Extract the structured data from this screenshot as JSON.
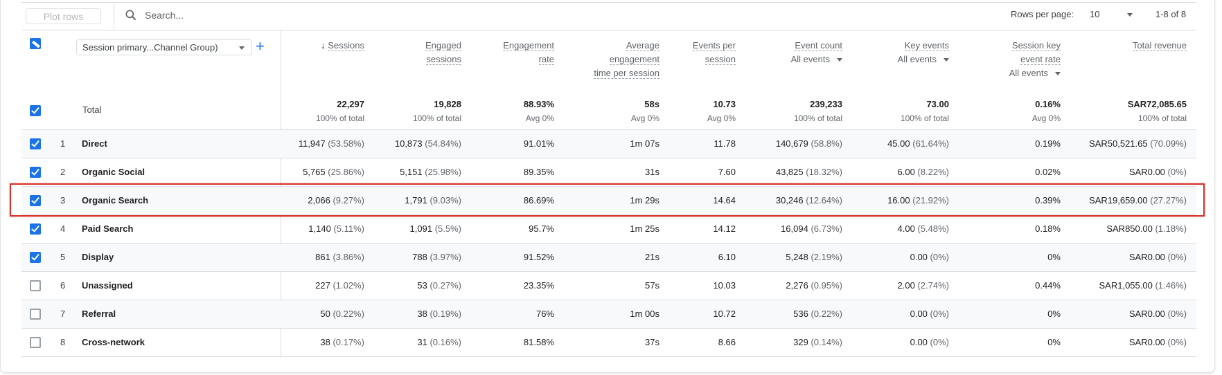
{
  "toolbar": {
    "plot_rows_label": "Plot rows",
    "search_placeholder": "Search...",
    "rows_per_page_label": "Rows per page:",
    "rows_per_page_value": "10",
    "pagination": "1-8 of 8"
  },
  "dimension": {
    "selector_label": "Session primary...Channel Group)",
    "add_icon": "plus-icon"
  },
  "columns": [
    {
      "lines": [
        "Sessions"
      ],
      "sort": "desc",
      "selector": null
    },
    {
      "lines": [
        "Engaged",
        "sessions"
      ],
      "selector": null
    },
    {
      "lines": [
        "Engagement",
        "rate"
      ],
      "selector": null
    },
    {
      "lines": [
        "Average",
        "engagement",
        "time per session"
      ],
      "selector": null
    },
    {
      "lines": [
        "Events per",
        "session"
      ],
      "selector": null
    },
    {
      "lines": [
        "Event count"
      ],
      "selector": "All events"
    },
    {
      "lines": [
        "Key events"
      ],
      "selector": "All events"
    },
    {
      "lines": [
        "Session key",
        "event rate"
      ],
      "selector": "All events"
    },
    {
      "lines": [
        "Total revenue"
      ],
      "selector": null
    }
  ],
  "total": {
    "label": "Total",
    "checked": true,
    "values": [
      {
        "v": "22,297",
        "s": "100% of total"
      },
      {
        "v": "19,828",
        "s": "100% of total"
      },
      {
        "v": "88.93%",
        "s": "Avg 0%"
      },
      {
        "v": "58s",
        "s": "Avg 0%"
      },
      {
        "v": "10.73",
        "s": "Avg 0%"
      },
      {
        "v": "239,233",
        "s": "100% of total"
      },
      {
        "v": "73.00",
        "s": "100% of total"
      },
      {
        "v": "0.16%",
        "s": "Avg 0%"
      },
      {
        "v": "SAR72,085.65",
        "s": "100% of total"
      }
    ]
  },
  "rows": [
    {
      "index": "1",
      "label": "Direct",
      "checked": true,
      "cells": [
        [
          "11,947",
          "(53.58%)"
        ],
        [
          "10,873",
          "(54.84%)"
        ],
        [
          "91.01%",
          ""
        ],
        [
          "1m 07s",
          ""
        ],
        [
          "11.78",
          ""
        ],
        [
          "140,679",
          "(58.8%)"
        ],
        [
          "45.00",
          "(61.64%)"
        ],
        [
          "0.19%",
          ""
        ],
        [
          "SAR50,521.65",
          "(70.09%)"
        ]
      ]
    },
    {
      "index": "2",
      "label": "Organic Social",
      "checked": true,
      "cells": [
        [
          "5,765",
          "(25.86%)"
        ],
        [
          "5,151",
          "(25.98%)"
        ],
        [
          "89.35%",
          ""
        ],
        [
          "31s",
          ""
        ],
        [
          "7.60",
          ""
        ],
        [
          "43,825",
          "(18.32%)"
        ],
        [
          "6.00",
          "(8.22%)"
        ],
        [
          "0.02%",
          ""
        ],
        [
          "SAR0.00",
          "(0%)"
        ]
      ]
    },
    {
      "index": "3",
      "label": "Organic Search",
      "checked": true,
      "highlighted": true,
      "cells": [
        [
          "2,066",
          "(9.27%)"
        ],
        [
          "1,791",
          "(9.03%)"
        ],
        [
          "86.69%",
          ""
        ],
        [
          "1m 29s",
          ""
        ],
        [
          "14.64",
          ""
        ],
        [
          "30,246",
          "(12.64%)"
        ],
        [
          "16.00",
          "(21.92%)"
        ],
        [
          "0.39%",
          ""
        ],
        [
          "SAR19,659.00",
          "(27.27%)"
        ]
      ]
    },
    {
      "index": "4",
      "label": "Paid Search",
      "checked": true,
      "cells": [
        [
          "1,140",
          "(5.11%)"
        ],
        [
          "1,091",
          "(5.5%)"
        ],
        [
          "95.7%",
          ""
        ],
        [
          "1m 25s",
          ""
        ],
        [
          "14.12",
          ""
        ],
        [
          "16,094",
          "(6.73%)"
        ],
        [
          "4.00",
          "(5.48%)"
        ],
        [
          "0.18%",
          ""
        ],
        [
          "SAR850.00",
          "(1.18%)"
        ]
      ]
    },
    {
      "index": "5",
      "label": "Display",
      "checked": true,
      "cells": [
        [
          "861",
          "(3.86%)"
        ],
        [
          "788",
          "(3.97%)"
        ],
        [
          "91.52%",
          ""
        ],
        [
          "21s",
          ""
        ],
        [
          "6.10",
          ""
        ],
        [
          "5,248",
          "(2.19%)"
        ],
        [
          "0.00",
          "(0%)"
        ],
        [
          "0%",
          ""
        ],
        [
          "SAR0.00",
          "(0%)"
        ]
      ]
    },
    {
      "index": "6",
      "label": "Unassigned",
      "checked": false,
      "cells": [
        [
          "227",
          "(1.02%)"
        ],
        [
          "53",
          "(0.27%)"
        ],
        [
          "23.35%",
          ""
        ],
        [
          "57s",
          ""
        ],
        [
          "10.03",
          ""
        ],
        [
          "2,276",
          "(0.95%)"
        ],
        [
          "2.00",
          "(2.74%)"
        ],
        [
          "0.44%",
          ""
        ],
        [
          "SAR1,055.00",
          "(1.46%)"
        ]
      ]
    },
    {
      "index": "7",
      "label": "Referral",
      "checked": false,
      "cells": [
        [
          "50",
          "(0.22%)"
        ],
        [
          "38",
          "(0.19%)"
        ],
        [
          "76%",
          ""
        ],
        [
          "1m 00s",
          ""
        ],
        [
          "10.72",
          ""
        ],
        [
          "536",
          "(0.22%)"
        ],
        [
          "0.00",
          "(0%)"
        ],
        [
          "0%",
          ""
        ],
        [
          "SAR0.00",
          "(0%)"
        ]
      ]
    },
    {
      "index": "8",
      "label": "Cross-network",
      "checked": false,
      "cells": [
        [
          "38",
          "(0.17%)"
        ],
        [
          "31",
          "(0.16%)"
        ],
        [
          "81.58%",
          ""
        ],
        [
          "37s",
          ""
        ],
        [
          "8.66",
          ""
        ],
        [
          "329",
          "(0.14%)"
        ],
        [
          "0.00",
          "(0%)"
        ],
        [
          "0%",
          ""
        ],
        [
          "SAR0.00",
          "(0%)"
        ]
      ]
    }
  ],
  "colors": {
    "accent": "#1a73e8",
    "highlight_box": "#d93025",
    "row_alt": "#f8f9fa"
  }
}
